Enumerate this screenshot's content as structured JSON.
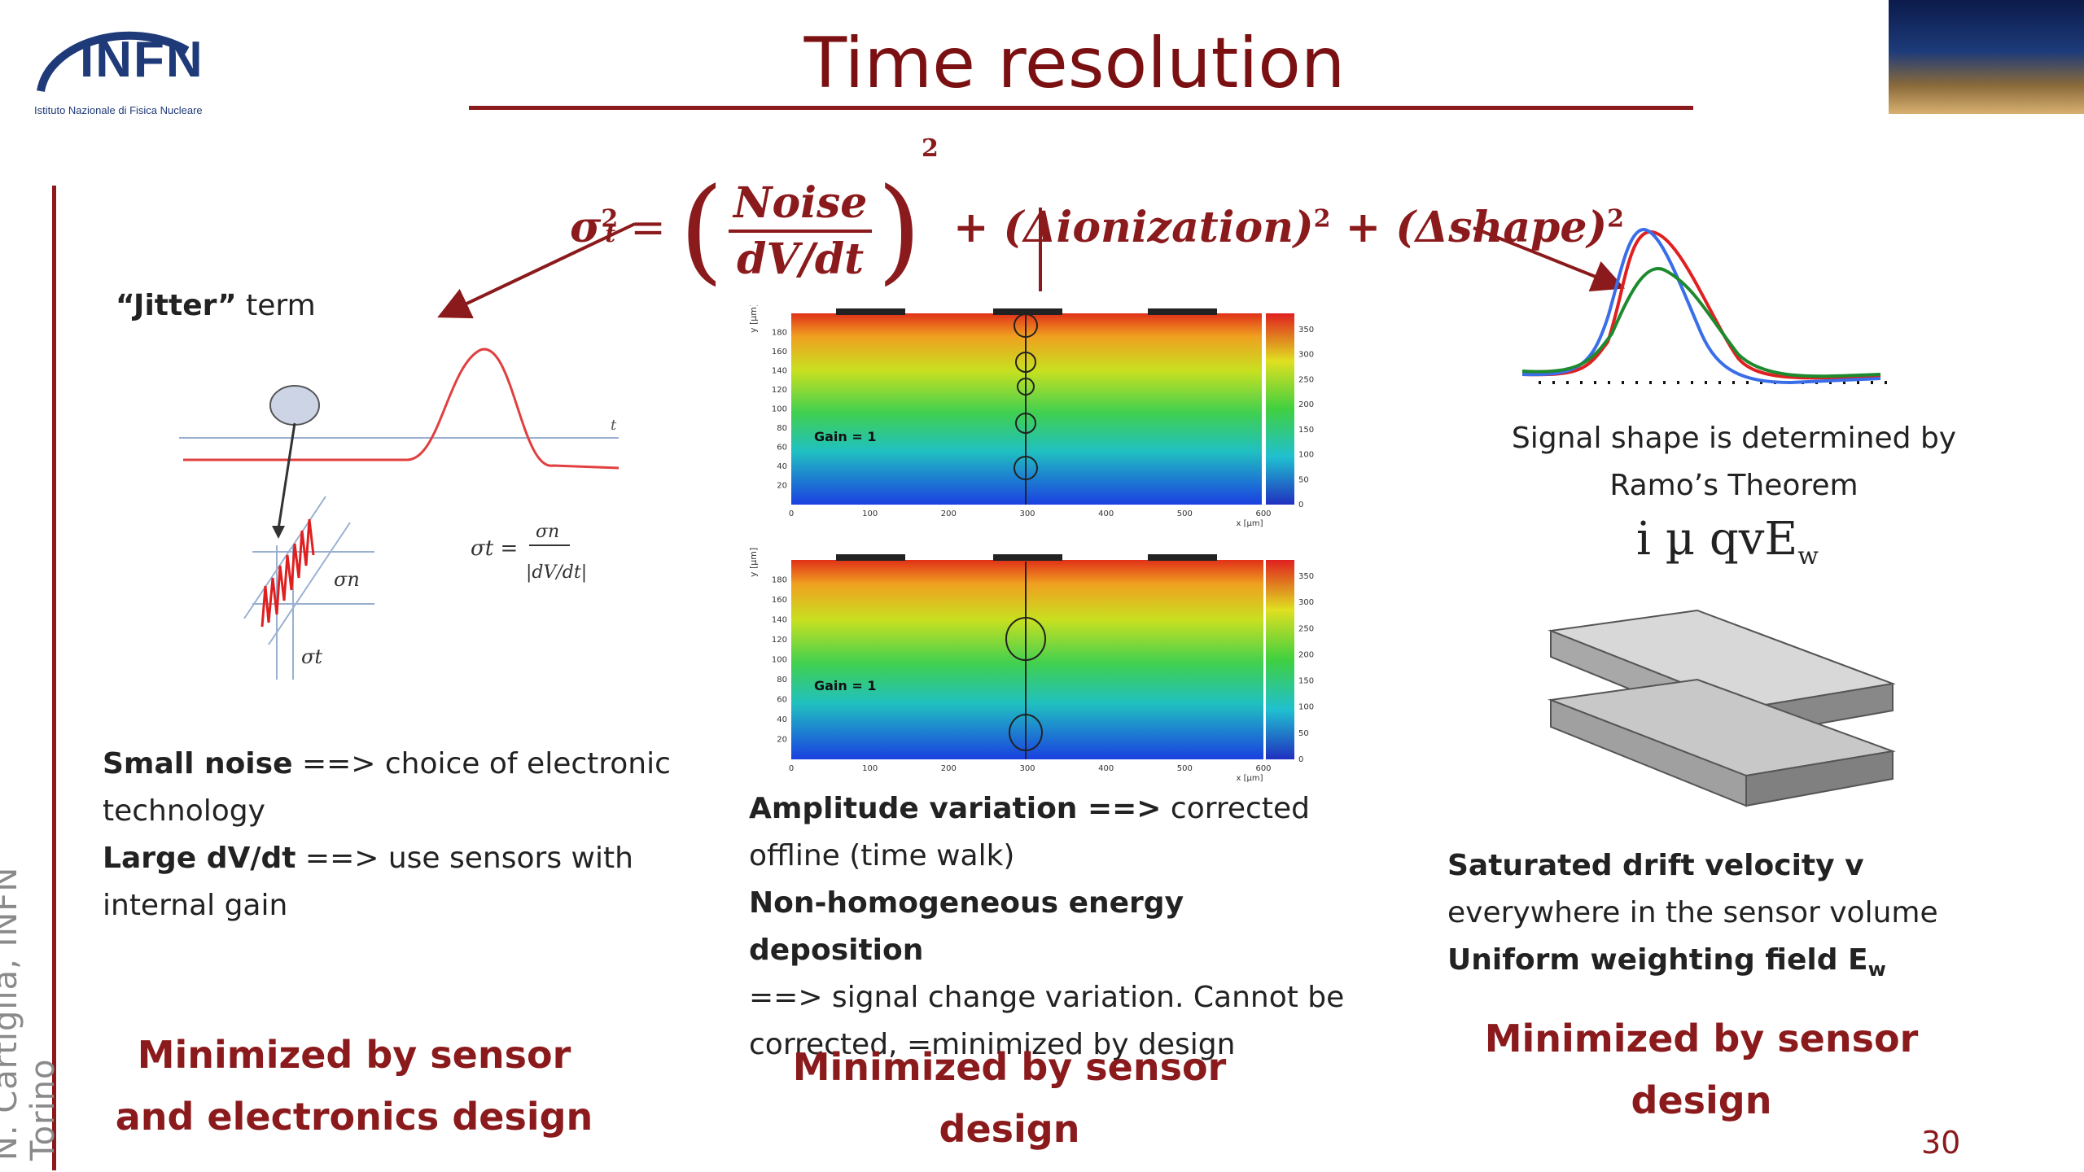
{
  "header": {
    "title": "Time resolution",
    "logo_text": "INFN",
    "logo_subtitle": "Istituto Nazionale di Fisica Nucleare"
  },
  "sidebar": {
    "author": "N. Cartiglia, INFN Torino"
  },
  "formula": {
    "lhs": "σ",
    "lhs_sub": "t",
    "lhs_sup": "2",
    "num": "Noise",
    "den": "dV/dt",
    "sq": "2",
    "term2": "+ (Δionization)",
    "term3": "+ (Δshape)"
  },
  "left": {
    "jitter_bold": "“Jitter”",
    "jitter_rest": " term",
    "line1_bold": "Small noise",
    "line1_rest": " ==> choice of electronic technology",
    "line2_bold": "Large dV/dt",
    "line2_rest": " ==> use sensors with internal gain",
    "heading": "Minimized by sensor and electronics design",
    "diagram": {
      "t_label": "t",
      "sigma_n": "σn",
      "sigma_t": "σt",
      "eq_lhs": "σt =",
      "eq_num": "σn",
      "eq_den": "|dV/dt|"
    }
  },
  "center": {
    "plot_top_gain": "Gain = 1",
    "plot_bottom_gain": "Gain = 1",
    "y_ticks": [
      "20",
      "40",
      "60",
      "80",
      "100",
      "120",
      "140",
      "160",
      "180"
    ],
    "x_ticks": [
      "0",
      "100",
      "200",
      "300",
      "400",
      "500",
      "600"
    ],
    "colorbar_ticks": [
      "0",
      "50",
      "100",
      "150",
      "200",
      "250",
      "300",
      "350"
    ],
    "y_axis_label": "y [μm]",
    "x_axis_label": "x [μm]",
    "line1_bold": "Amplitude variation ==>",
    "line1_rest": " corrected offline (time walk)",
    "line2_bold": "Non-homogeneous energy deposition",
    "line2_rest": "==> signal change variation. Cannot be corrected, =minimized by design",
    "heading": "Minimized by sensor design"
  },
  "right": {
    "ramo_text": "Signal shape is determined by Ramo’s Theorem",
    "ramo_eq_main": "i µ qvE",
    "ramo_eq_sub": "w",
    "line1_bold": "Saturated drift velocity  v",
    "line1_rest": "everywhere in the sensor volume",
    "line2_bold": "Uniform weighting field E",
    "line2_sub": "w",
    "heading": "Minimized by sensor design",
    "curve_colors": [
      "#e02020",
      "#3a6ee8",
      "#1e8a2e"
    ]
  },
  "page_number": "30",
  "colors": {
    "accent": "#8b1a1c",
    "logo": "#1f3a78"
  }
}
